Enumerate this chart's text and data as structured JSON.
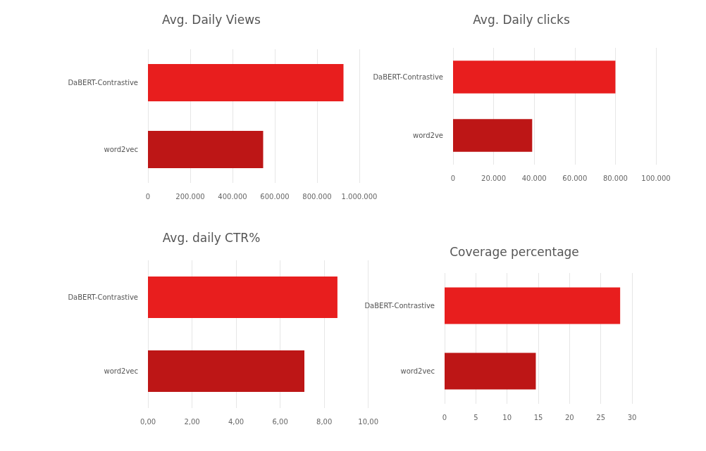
{
  "chart_data": [
    {
      "type": "bar",
      "orientation": "horizontal",
      "title": "Avg. Daily Views",
      "categories": [
        "DaBERT-Contrastive",
        "word2vec"
      ],
      "values": [
        925000,
        545000
      ],
      "colors": [
        "#e81e1e",
        "#bd1616"
      ],
      "xlim": [
        0,
        1000000
      ],
      "xticks": [
        0,
        {
          "value": 200000,
          "label": "200.000"
        },
        {
          "value": 400000,
          "label": "400.000"
        },
        {
          "value": 600000,
          "label": "600.000"
        },
        {
          "value": 800000,
          "label": "800.000"
        },
        {
          "value": 1000000,
          "label": "1.000.000"
        }
      ],
      "grid": "x"
    },
    {
      "type": "bar",
      "orientation": "horizontal",
      "title": "Avg. Daily clicks",
      "categories": [
        "DaBERT-Contrastive",
        "word2ve"
      ],
      "values": [
        80000,
        39000
      ],
      "colors": [
        "#e81e1e",
        "#bd1616"
      ],
      "xlim": [
        0,
        100000
      ],
      "xticks": [
        0,
        {
          "value": 20000,
          "label": "20.000"
        },
        {
          "value": 40000,
          "label": "40.000"
        },
        {
          "value": 60000,
          "label": "60.000"
        },
        {
          "value": 80000,
          "label": "80.000"
        },
        {
          "value": 100000,
          "label": "100.000"
        }
      ],
      "grid": "x"
    },
    {
      "type": "bar",
      "orientation": "horizontal",
      "title": "Avg. daily CTR%",
      "categories": [
        "DaBERT-Contrastive",
        "word2vec"
      ],
      "values": [
        8.6,
        7.1
      ],
      "colors": [
        "#e81e1e",
        "#bd1616"
      ],
      "xlim": [
        0,
        10
      ],
      "xticks": [
        {
          "value": 0,
          "label": "0,00"
        },
        {
          "value": 2,
          "label": "2,00"
        },
        {
          "value": 4,
          "label": "4,00"
        },
        {
          "value": 6,
          "label": "6,00"
        },
        {
          "value": 8,
          "label": "8,00"
        },
        {
          "value": 10,
          "label": "10,00"
        }
      ],
      "grid": "x"
    },
    {
      "type": "bar",
      "orientation": "horizontal",
      "title": "Coverage percentage",
      "categories": [
        "DaBERT-Contrastive",
        "word2vec"
      ],
      "values": [
        28.1,
        14.6
      ],
      "colors": [
        "#e81e1e",
        "#bd1616"
      ],
      "xlim": [
        0,
        30
      ],
      "xticks": [
        0,
        5,
        10,
        15,
        20,
        25,
        30
      ],
      "grid": "x"
    }
  ]
}
